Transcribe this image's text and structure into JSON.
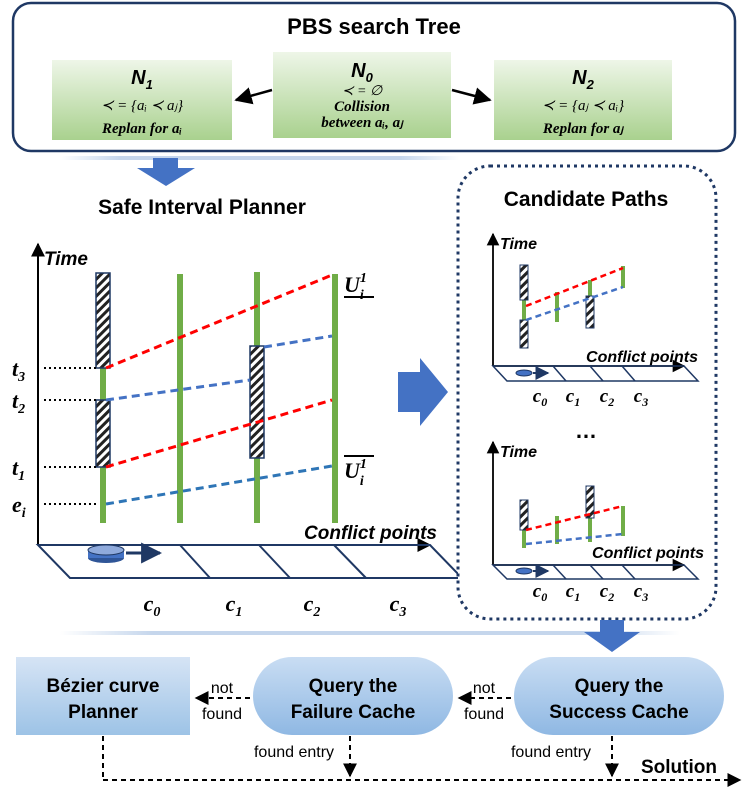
{
  "pbs_tree": {
    "title": "PBS search Tree",
    "n1": {
      "name": "N",
      "sub": "1",
      "order": "≺ = {aᵢ ≺ aⱼ}",
      "action": "Replan for aᵢ"
    },
    "n0": {
      "name": "N",
      "sub": "0",
      "order": "≺ = ∅",
      "line1": "Collision",
      "line2": "between aᵢ, aⱼ"
    },
    "n2": {
      "name": "N",
      "sub": "2",
      "order": "≺ = {aⱼ ≺ aᵢ}",
      "action": "Replan for aⱼ"
    }
  },
  "sip": {
    "title": "Safe Interval Planner",
    "y_axis_label": "Time",
    "x_axis_label": "Conflict points",
    "time_ticks": [
      {
        "base": "t",
        "sub": "3"
      },
      {
        "base": "t",
        "sub": "2"
      },
      {
        "base": "t",
        "sub": "1"
      },
      {
        "base": "e",
        "sub": "i"
      }
    ],
    "cells": [
      {
        "base": "c",
        "sub": "0"
      },
      {
        "base": "c",
        "sub": "1"
      },
      {
        "base": "c",
        "sub": "2"
      },
      {
        "base": "c",
        "sub": "3"
      }
    ],
    "upper_bound": {
      "base": "U",
      "sub": "i",
      "sup": "1"
    },
    "lower_bound": {
      "base": "U",
      "sub": "i",
      "sup": "1"
    }
  },
  "candidates": {
    "title": "Candidate Paths",
    "y_axis_label": "Time",
    "x_axis_label": "Conflict points",
    "ellipsis": "…",
    "cells": [
      {
        "base": "c",
        "sub": "0"
      },
      {
        "base": "c",
        "sub": "1"
      },
      {
        "base": "c",
        "sub": "2"
      },
      {
        "base": "c",
        "sub": "3"
      }
    ]
  },
  "flow": {
    "bezier": {
      "line1": "Bézier curve",
      "line2": "Planner"
    },
    "failure_cache": {
      "line1": "Query the",
      "line2": "Failure Cache"
    },
    "success_cache": {
      "line1": "Query the",
      "line2": "Success Cache"
    },
    "not_found": {
      "line1": "not",
      "line2": "found"
    },
    "found_entry": "found entry",
    "solution": "Solution"
  },
  "colors": {
    "navy": "#1f3864",
    "green_band": "#70ad47",
    "red_path": "#ff0000",
    "blue_path": "#4472c4",
    "box_blue": "#9dc3e6",
    "box_lightblue": "#b4c7e7",
    "green_box_top": "#e2f0d9",
    "green_box_bottom": "#a9d18e"
  }
}
